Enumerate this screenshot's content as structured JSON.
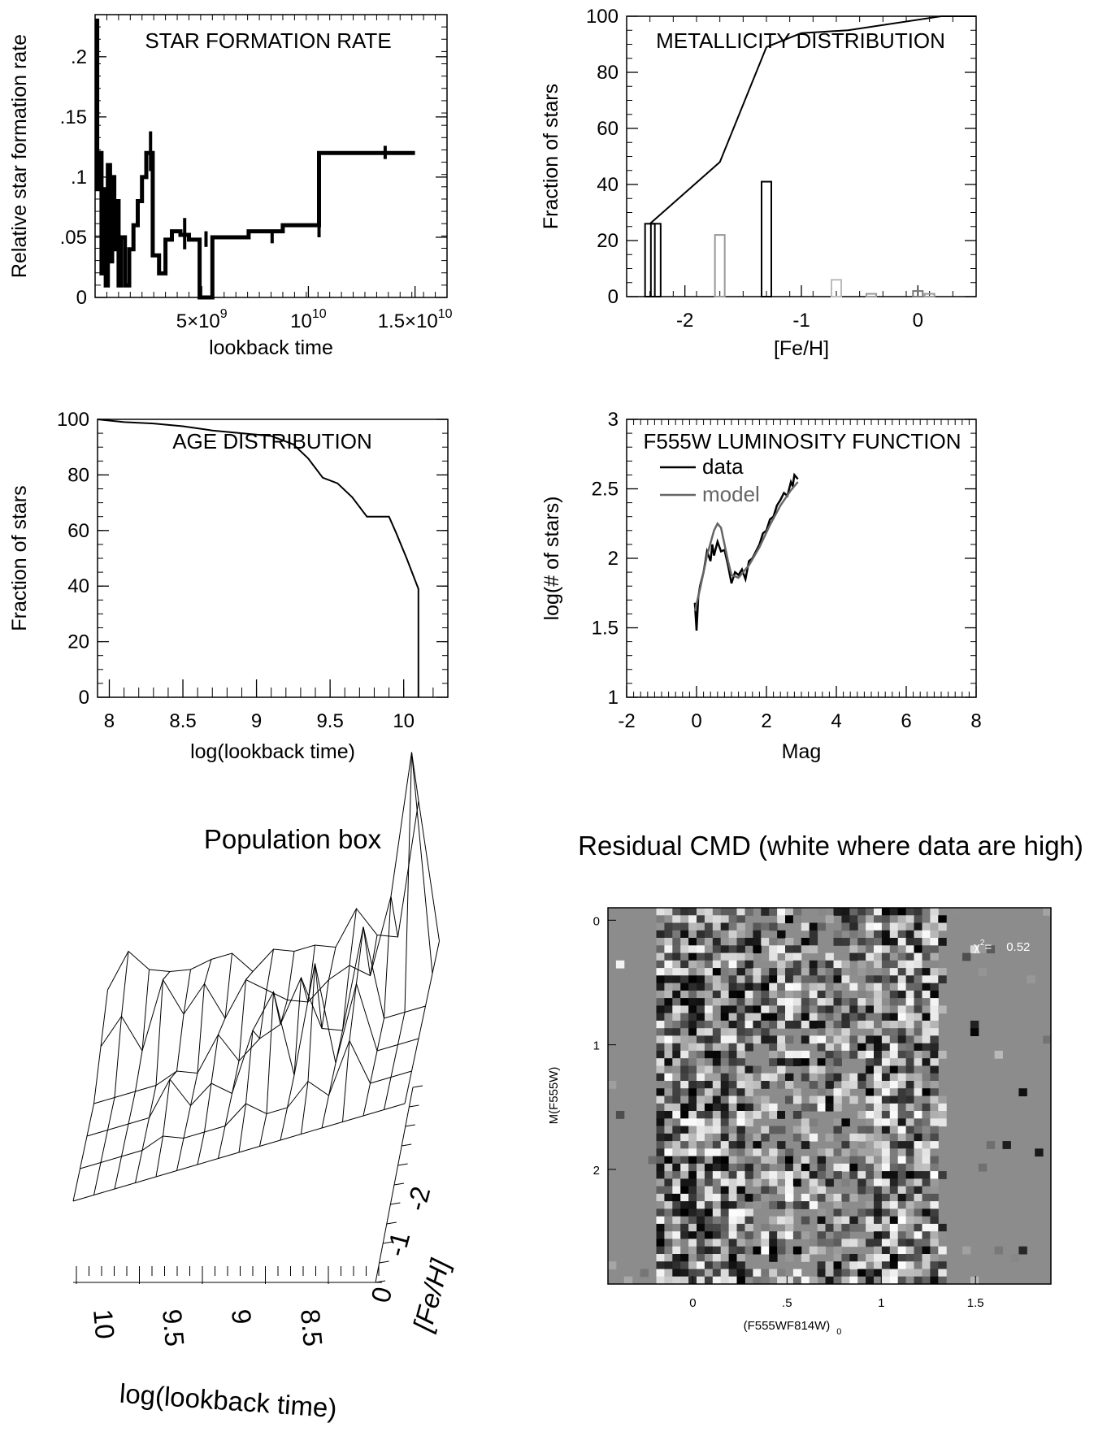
{
  "chart_data": [
    {
      "id": "sfr",
      "type": "line",
      "title": "STAR FORMATION RATE",
      "xlabel": "lookback time",
      "ylabel": "Relative star formation rate",
      "xlim": [
        0,
        16500000000
      ],
      "ylim": [
        0,
        0.235
      ],
      "xticks": [
        {
          "v": 5000000000,
          "base": "5×10",
          "exp": "9"
        },
        {
          "v": 10000000000,
          "base": "10",
          "exp": "10"
        },
        {
          "v": 15000000000,
          "base": "1.5×10",
          "exp": "10"
        }
      ],
      "yticks": [
        {
          "v": 0,
          "label": "0"
        },
        {
          "v": 0.05,
          "label": ".05"
        },
        {
          "v": 0.1,
          "label": ".1"
        },
        {
          "v": 0.15,
          "label": ".15"
        },
        {
          "v": 0.2,
          "label": ".2"
        }
      ],
      "series": [
        {
          "name": "SFR",
          "x": [
            0,
            100000000,
            100000000,
            200000000,
            200000000,
            300000000,
            300000000,
            400000000,
            400000000,
            500000000,
            500000000,
            600000000,
            600000000,
            700000000,
            700000000,
            800000000,
            800000000,
            900000000,
            900000000,
            1000000000,
            1000000000,
            1100000000,
            1100000000,
            1200000000,
            1200000000,
            1400000000,
            1400000000,
            1600000000,
            1600000000,
            1800000000,
            1800000000,
            2000000000,
            2000000000,
            2200000000,
            2200000000,
            2400000000,
            2400000000,
            2700000000,
            2700000000,
            3000000000,
            3000000000,
            3300000000,
            3300000000,
            3600000000,
            3600000000,
            4000000000,
            4000000000,
            4400000000,
            4400000000,
            4900000000,
            4900000000,
            5500000000,
            5500000000,
            7200000000,
            7200000000,
            8800000000,
            8800000000,
            10500000000,
            10500000000,
            12400000000,
            12400000000,
            15000000000
          ],
          "y": [
            0.23,
            0.23,
            0.09,
            0.09,
            0.12,
            0.12,
            0.02,
            0.02,
            0.09,
            0.09,
            0.01,
            0.01,
            0.11,
            0.11,
            0.03,
            0.03,
            0.1,
            0.1,
            0.04,
            0.04,
            0.08,
            0.08,
            0.01,
            0.01,
            0.05,
            0.05,
            0.01,
            0.01,
            0.04,
            0.04,
            0.06,
            0.06,
            0.08,
            0.08,
            0.1,
            0.1,
            0.12,
            0.12,
            0.035,
            0.035,
            0.02,
            0.02,
            0.048,
            0.048,
            0.055,
            0.055,
            0.052,
            0.052,
            0.048,
            0.048,
            0.0,
            0.0,
            0.05,
            0.05,
            0.055,
            0.055,
            0.06,
            0.06,
            0.12,
            0.12,
            0.12,
            0.12
          ]
        }
      ],
      "errorbars": [
        {
          "x": 2600000000,
          "y": 0.12,
          "lo": 0.105,
          "hi": 0.138
        },
        {
          "x": 4200000000,
          "y": 0.052,
          "lo": 0.04,
          "hi": 0.066
        },
        {
          "x": 5200000000,
          "y": 0.048,
          "lo": 0.042,
          "hi": 0.055
        },
        {
          "x": 8300000000,
          "y": 0.05,
          "lo": 0.045,
          "hi": 0.056
        },
        {
          "x": 10500000000,
          "y": 0.06,
          "lo": 0.05,
          "hi": 0.07
        },
        {
          "x": 13600000000,
          "y": 0.12,
          "lo": 0.115,
          "hi": 0.126
        }
      ]
    },
    {
      "id": "metallicity",
      "type": "bar",
      "title": "METALLICITY DISTRIBUTION",
      "xlabel": "[Fe/H]",
      "ylabel": "Fraction of stars",
      "xlim": [
        -2.5,
        0.5
      ],
      "ylim": [
        0,
        100
      ],
      "xticks": [
        {
          "v": -2,
          "label": "-2"
        },
        {
          "v": -1,
          "label": "-1"
        },
        {
          "v": 0,
          "label": "0"
        }
      ],
      "yticks": [
        {
          "v": 0,
          "label": "0"
        },
        {
          "v": 20,
          "label": "20"
        },
        {
          "v": 40,
          "label": "40"
        },
        {
          "v": 60,
          "label": "60"
        },
        {
          "v": 80,
          "label": "80"
        },
        {
          "v": 100,
          "label": "100"
        }
      ],
      "bars": [
        {
          "x": -2.3,
          "value": 26,
          "color": "#000000"
        },
        {
          "x": -2.25,
          "value": 26,
          "color": "#000000"
        },
        {
          "x": -1.7,
          "value": 22,
          "color": "#999999"
        },
        {
          "x": -1.3,
          "value": 41,
          "color": "#000000"
        },
        {
          "x": -0.7,
          "value": 6,
          "color": "#bbbbbb"
        },
        {
          "x": -0.4,
          "value": 1,
          "color": "#999999"
        },
        {
          "x": 0.0,
          "value": 2,
          "color": "#777777"
        },
        {
          "x": 0.1,
          "value": 1,
          "color": "#999999"
        }
      ],
      "cumulative": {
        "x": [
          -2.3,
          -1.7,
          -1.3,
          -1.0,
          -0.6,
          0.2,
          0.5
        ],
        "y": [
          26,
          48,
          89,
          94,
          95,
          100,
          100
        ]
      }
    },
    {
      "id": "age",
      "type": "line",
      "title": "AGE DISTRIBUTION",
      "xlabel": "log(lookback time)",
      "ylabel": "Fraction of stars",
      "xlim": [
        7.92,
        10.3
      ],
      "ylim": [
        0,
        100
      ],
      "xticks": [
        {
          "v": 8,
          "label": "8"
        },
        {
          "v": 8.5,
          "label": "8.5"
        },
        {
          "v": 9,
          "label": "9"
        },
        {
          "v": 9.5,
          "label": "9.5"
        },
        {
          "v": 10,
          "label": "10"
        }
      ],
      "yticks": [
        {
          "v": 0,
          "label": "0"
        },
        {
          "v": 20,
          "label": "20"
        },
        {
          "v": 40,
          "label": "40"
        },
        {
          "v": 60,
          "label": "60"
        },
        {
          "v": 80,
          "label": "80"
        },
        {
          "v": 100,
          "label": "100"
        }
      ],
      "series": [
        {
          "name": "cumulative",
          "x": [
            7.92,
            8.1,
            8.3,
            8.5,
            8.7,
            8.9,
            9.1,
            9.25,
            9.35,
            9.45,
            9.55,
            9.65,
            9.75,
            9.83,
            9.9,
            9.95,
            10.02,
            10.1,
            10.1
          ],
          "y": [
            100,
            99,
            98.5,
            97.5,
            96,
            95,
            94,
            91,
            86,
            79,
            77,
            72,
            65,
            65,
            65,
            59,
            50,
            39,
            0
          ]
        }
      ]
    },
    {
      "id": "lf",
      "type": "line",
      "title": "F555W LUMINOSITY FUNCTION",
      "xlabel": "Mag",
      "ylabel": "log(# of stars)",
      "xlim": [
        -2,
        8
      ],
      "ylim": [
        1,
        3
      ],
      "xticks": [
        {
          "v": -2,
          "label": "-2"
        },
        {
          "v": 0,
          "label": "0"
        },
        {
          "v": 2,
          "label": "2"
        },
        {
          "v": 4,
          "label": "4"
        },
        {
          "v": 6,
          "label": "6"
        },
        {
          "v": 8,
          "label": "8"
        }
      ],
      "yticks": [
        {
          "v": 1,
          "label": "1"
        },
        {
          "v": 1.5,
          "label": "1.5"
        },
        {
          "v": 2,
          "label": "2"
        },
        {
          "v": 2.5,
          "label": "2.5"
        },
        {
          "v": 3,
          "label": "3"
        }
      ],
      "legend": [
        {
          "label": "data",
          "color": "#000000"
        },
        {
          "label": "model",
          "color": "#666666"
        }
      ],
      "series": [
        {
          "name": "data",
          "color": "#000000",
          "x": [
            -0.05,
            0.0,
            0.05,
            0.1,
            0.2,
            0.3,
            0.4,
            0.45,
            0.5,
            0.6,
            0.7,
            0.8,
            0.9,
            1.0,
            1.1,
            1.2,
            1.3,
            1.4,
            1.5,
            1.6,
            1.7,
            1.8,
            1.9,
            2.0,
            2.1,
            2.2,
            2.3,
            2.4,
            2.5,
            2.6,
            2.7,
            2.75,
            2.8,
            2.9
          ],
          "y": [
            1.68,
            1.48,
            1.72,
            1.8,
            1.9,
            2.05,
            1.98,
            2.1,
            2.02,
            2.12,
            2.05,
            2.06,
            1.95,
            1.82,
            1.9,
            1.88,
            1.92,
            1.85,
            1.98,
            2.0,
            2.05,
            2.1,
            2.18,
            2.2,
            2.28,
            2.3,
            2.38,
            2.42,
            2.47,
            2.45,
            2.55,
            2.52,
            2.6,
            2.57
          ]
        },
        {
          "name": "model",
          "color": "#666666",
          "x": [
            -0.05,
            0.1,
            0.3,
            0.5,
            0.6,
            0.7,
            0.8,
            0.9,
            1.0,
            1.2,
            1.5,
            1.8,
            2.1,
            2.4,
            2.7,
            2.9
          ],
          "y": [
            1.62,
            1.78,
            2.02,
            2.2,
            2.25,
            2.22,
            2.1,
            1.98,
            1.88,
            1.86,
            1.95,
            2.08,
            2.24,
            2.38,
            2.49,
            2.55
          ]
        }
      ]
    },
    {
      "id": "popbox",
      "type": "surface",
      "title": "Population box",
      "xlabel": "log(lookback time)",
      "ylabel": "[Fe/H]",
      "xticks": [
        {
          "v": 10,
          "label": "10"
        },
        {
          "v": 9.5,
          "label": "9.5"
        },
        {
          "v": 9,
          "label": "9"
        },
        {
          "v": 8.5,
          "label": "8.5"
        }
      ],
      "yticks": [
        {
          "v": 0,
          "label": "0"
        },
        {
          "v": -1,
          "label": "-1"
        },
        {
          "v": -2,
          "label": "-2"
        }
      ]
    },
    {
      "id": "cmd",
      "type": "heatmap",
      "title": "Residual CMD (white where data are high)",
      "xlabel": "(F555WF814W)",
      "xlabel_sub": "0",
      "ylabel": "M(F555W)",
      "xlim": [
        -0.45,
        1.9
      ],
      "ylim": [
        2.92,
        -0.1
      ],
      "xticks": [
        {
          "v": 0,
          "label": "0"
        },
        {
          "v": 0.5,
          "label": ".5"
        },
        {
          "v": 1,
          "label": "1"
        },
        {
          "v": 1.5,
          "label": "1.5"
        }
      ],
      "yticks": [
        {
          "v": 0,
          "label": "0"
        },
        {
          "v": 1,
          "label": "1"
        },
        {
          "v": 2,
          "label": "2"
        }
      ],
      "annotation_label": "χ",
      "annotation_sup": "2",
      "annotation_eq": "=",
      "annotation_value": "0.52"
    }
  ]
}
